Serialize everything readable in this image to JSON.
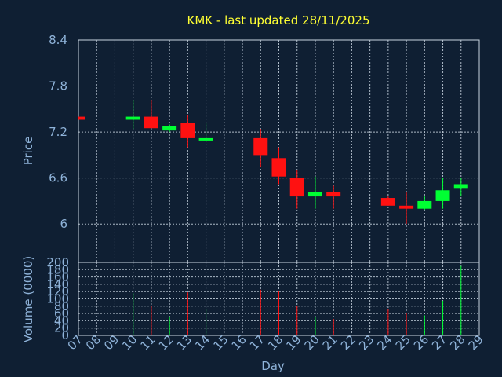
{
  "chart_data": {
    "type": "candlestick",
    "title": "KMK - last updated 28/11/2025",
    "ylabel_price": "Price",
    "ylabel_volume": "Volume (0000)",
    "xlabel": "Day",
    "price_ylim": [
      5.5,
      8.4
    ],
    "price_ticks": [
      6,
      6.6,
      7.2,
      7.8,
      8.4
    ],
    "price_tick_labels": [
      "6",
      "6.6",
      "7.2",
      "7.8",
      "8.4"
    ],
    "volume_ylim": [
      0,
      200
    ],
    "volume_ticks": [
      0,
      20,
      40,
      60,
      80,
      100,
      120,
      140,
      160,
      180,
      200
    ],
    "volume_tick_labels": [
      "0",
      "20",
      "40",
      "60",
      "80",
      "100",
      "120",
      "140",
      "160",
      "180",
      "200"
    ],
    "x_ticks": [
      "07",
      "08",
      "09",
      "10",
      "11",
      "12",
      "13",
      "14",
      "15",
      "16",
      "17",
      "18",
      "19",
      "20",
      "21",
      "22",
      "23",
      "24",
      "25",
      "26",
      "27",
      "28",
      "29"
    ],
    "up_color": "#00ff33",
    "down_color": "#ff1111",
    "candles": [
      {
        "day": "07",
        "open": 7.4,
        "close": 7.36,
        "high": 7.4,
        "low": 7.36,
        "volume": 0
      },
      {
        "day": "10",
        "open": 7.36,
        "close": 7.4,
        "high": 7.62,
        "low": 7.24,
        "volume": 116
      },
      {
        "day": "11",
        "open": 7.4,
        "close": 7.25,
        "high": 7.62,
        "low": 7.25,
        "volume": 80
      },
      {
        "day": "12",
        "open": 7.22,
        "close": 7.28,
        "high": 7.3,
        "low": 7.2,
        "volume": 52
      },
      {
        "day": "13",
        "open": 7.32,
        "close": 7.12,
        "high": 7.42,
        "low": 7.0,
        "volume": 118
      },
      {
        "day": "14",
        "open": 7.1,
        "close": 7.12,
        "high": 7.32,
        "low": 7.08,
        "volume": 72
      },
      {
        "day": "17",
        "open": 7.12,
        "close": 6.9,
        "high": 7.24,
        "low": 6.74,
        "volume": 125
      },
      {
        "day": "18",
        "open": 6.86,
        "close": 6.62,
        "high": 7.0,
        "low": 6.52,
        "volume": 122
      },
      {
        "day": "19",
        "open": 6.6,
        "close": 6.36,
        "high": 6.7,
        "low": 6.2,
        "volume": 80
      },
      {
        "day": "20",
        "open": 6.36,
        "close": 6.42,
        "high": 6.62,
        "low": 6.2,
        "volume": 52
      },
      {
        "day": "21",
        "open": 6.42,
        "close": 6.36,
        "high": 6.5,
        "low": 6.2,
        "volume": 45
      },
      {
        "day": "24",
        "open": 6.34,
        "close": 6.24,
        "high": 6.36,
        "low": 6.24,
        "volume": 72
      },
      {
        "day": "25",
        "open": 6.24,
        "close": 6.2,
        "high": 6.42,
        "low": 6.0,
        "volume": 62
      },
      {
        "day": "26",
        "open": 6.2,
        "close": 6.3,
        "high": 6.36,
        "low": 6.18,
        "volume": 55
      },
      {
        "day": "27",
        "open": 6.3,
        "close": 6.44,
        "high": 6.6,
        "low": 6.2,
        "volume": 95
      },
      {
        "day": "28",
        "open": 6.46,
        "close": 6.52,
        "high": 6.6,
        "low": 6.36,
        "volume": 190
      }
    ]
  }
}
